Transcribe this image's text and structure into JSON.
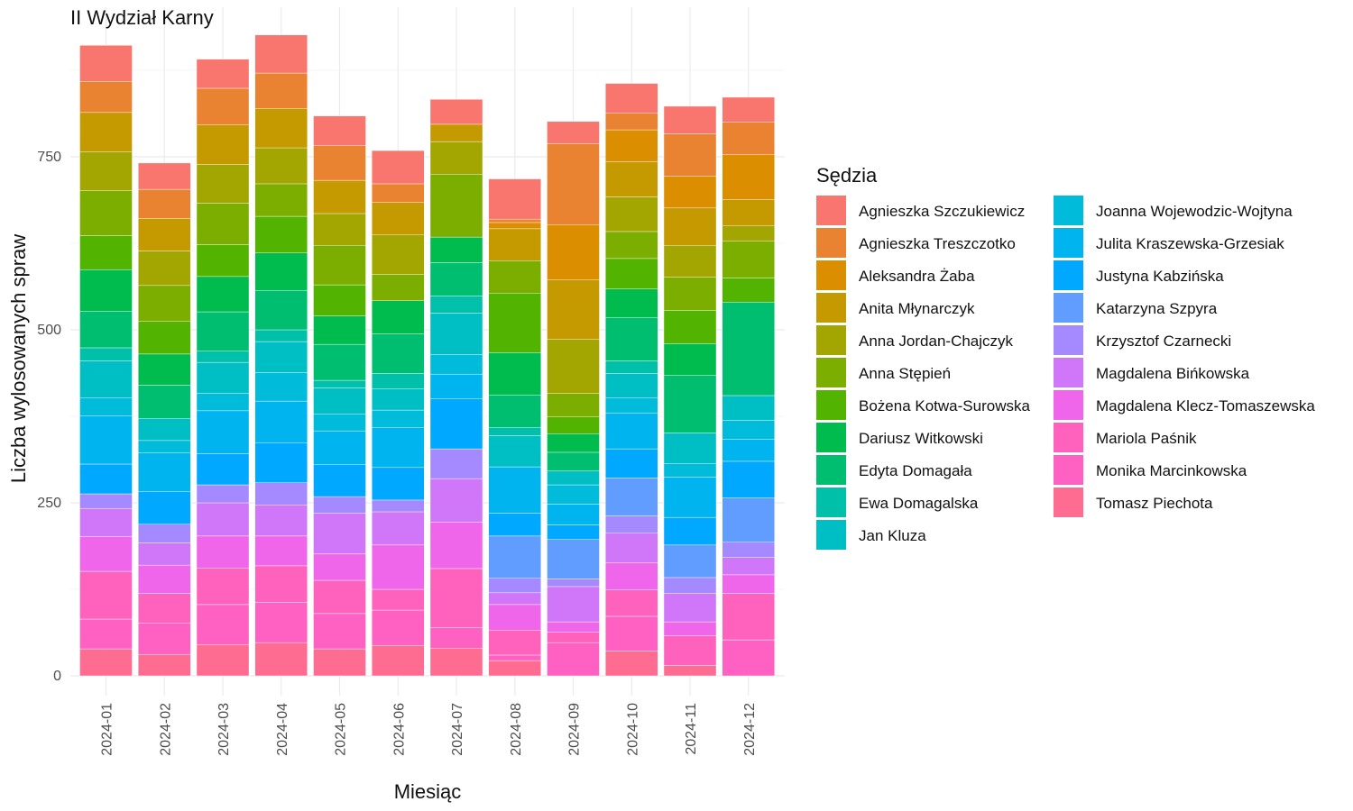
{
  "chart_data": {
    "type": "bar",
    "stacked": true,
    "title": "II Wydział Karny",
    "xlabel": "Miesiąc",
    "ylabel": "Liczba wylosowanych spraw",
    "ylim": [
      0,
      925
    ],
    "yticks": [
      0,
      250,
      500,
      750
    ],
    "grid": true,
    "legend_title": "Sędzia",
    "legend_position": "right",
    "categories": [
      "2024-01",
      "2024-02",
      "2024-03",
      "2024-04",
      "2024-05",
      "2024-06",
      "2024-07",
      "2024-08",
      "2024-09",
      "2024-10",
      "2024-11",
      "2024-12"
    ],
    "series": [
      {
        "name": "Tomasz Piechota",
        "color": "#FF6C91",
        "values": [
          39,
          31,
          45,
          48,
          39,
          44,
          40,
          22,
          0,
          36,
          15,
          0
        ]
      },
      {
        "name": "Monika Marcinkowska",
        "color": "#FF61C3",
        "values": [
          43,
          45,
          58,
          58,
          51,
          51,
          30,
          8,
          48,
          50,
          0,
          52
        ]
      },
      {
        "name": "Mariola Paśnik",
        "color": "#FF62BC",
        "values": [
          69,
          43,
          53,
          53,
          48,
          30,
          85,
          36,
          15,
          38,
          43,
          67
        ]
      },
      {
        "name": "Magdalena Klecz-Tomaszewska",
        "color": "#F066EA",
        "values": [
          50,
          41,
          46,
          43,
          38,
          64,
          67,
          37,
          15,
          39,
          20,
          27
        ]
      },
      {
        "name": "Magdalena Bińkowska",
        "color": "#CF77F8",
        "values": [
          41,
          32,
          48,
          45,
          59,
          48,
          63,
          17,
          51,
          43,
          41,
          25
        ]
      },
      {
        "name": "Krzysztof Czarnecki",
        "color": "#A58AFF",
        "values": [
          21,
          27,
          26,
          32,
          24,
          17,
          43,
          21,
          11,
          25,
          23,
          22
        ]
      },
      {
        "name": "Katarzyna Szpyra",
        "color": "#619CFF",
        "values": [
          0,
          0,
          0,
          0,
          0,
          0,
          0,
          61,
          57,
          55,
          47,
          64
        ]
      },
      {
        "name": "Justyna Kabzińska",
        "color": "#00A9FF",
        "values": [
          43,
          47,
          45,
          58,
          46,
          47,
          72,
          33,
          21,
          42,
          40,
          53
        ]
      },
      {
        "name": "Julita Kraszewska-Grzesiak",
        "color": "#00B4EF",
        "values": [
          70,
          56,
          62,
          60,
          49,
          58,
          36,
          67,
          30,
          52,
          58,
          32
        ]
      },
      {
        "name": "Joanna Wojewodzic-Wojtyna",
        "color": "#00BBDA",
        "values": [
          26,
          18,
          25,
          41,
          24,
          25,
          28,
          0,
          28,
          22,
          20,
          27
        ]
      },
      {
        "name": "Jan Kluza",
        "color": "#00BFC4",
        "values": [
          53,
          32,
          45,
          45,
          38,
          31,
          60,
          45,
          20,
          35,
          44,
          36
        ]
      },
      {
        "name": "Ewa Domagalska",
        "color": "#00C0AA",
        "values": [
          19,
          0,
          16,
          17,
          11,
          22,
          25,
          12,
          0,
          18,
          0,
          0
        ]
      },
      {
        "name": "Edyta Domagała",
        "color": "#00BE70",
        "values": [
          53,
          48,
          57,
          57,
          52,
          57,
          48,
          47,
          27,
          63,
          83,
          135
        ]
      },
      {
        "name": "Dariusz Witkowski",
        "color": "#00BB4E",
        "values": [
          60,
          45,
          51,
          54,
          41,
          48,
          37,
          61,
          27,
          41,
          46,
          0
        ]
      },
      {
        "name": "Bożena Kotwa-Surowska",
        "color": "#53B400",
        "values": [
          49,
          47,
          46,
          53,
          45,
          0,
          0,
          86,
          24,
          44,
          48,
          35
        ]
      },
      {
        "name": "Anna Stępień",
        "color": "#7CAE00",
        "values": [
          65,
          52,
          60,
          47,
          57,
          38,
          91,
          47,
          34,
          39,
          48,
          53
        ]
      },
      {
        "name": "Anna Jordan-Chajczyk",
        "color": "#A3A500",
        "values": [
          56,
          50,
          56,
          52,
          46,
          57,
          47,
          0,
          78,
          50,
          46,
          22
        ]
      },
      {
        "name": "Anita Młynarczyk",
        "color": "#C49A00",
        "values": [
          57,
          47,
          57,
          57,
          48,
          47,
          25,
          46,
          86,
          51,
          54,
          38
        ]
      },
      {
        "name": "Aleksandra Żaba",
        "color": "#DB8E00",
        "values": [
          0,
          0,
          0,
          0,
          0,
          0,
          0,
          9,
          80,
          46,
          46,
          65
        ]
      },
      {
        "name": "Agnieszka Treszczotko",
        "color": "#EA8331",
        "values": [
          45,
          42,
          53,
          51,
          50,
          27,
          0,
          5,
          117,
          24,
          61,
          47
        ]
      },
      {
        "name": "Agnieszka Szczukiewicz",
        "color": "#F8766D",
        "values": [
          52,
          38,
          42,
          55,
          43,
          48,
          36,
          58,
          32,
          43,
          40,
          36
        ]
      }
    ]
  },
  "legend": {
    "title": "Sędzia",
    "col1": [
      "Agnieszka Szczukiewicz",
      "Agnieszka Treszczotko",
      "Aleksandra Żaba",
      "Anita Młynarczyk",
      "Anna Jordan-Chajczyk",
      "Anna Stępień",
      "Bożena Kotwa-Surowska",
      "Dariusz Witkowski",
      "Edyta Domagała",
      "Ewa Domagalska",
      "Jan Kluza"
    ],
    "col2": [
      "Joanna Wojewodzic-Wojtyna",
      "Julita Kraszewska-Grzesiak",
      "Justyna Kabzińska",
      "Katarzyna Szpyra",
      "Krzysztof Czarnecki",
      "Magdalena Bińkowska",
      "Magdalena Klecz-Tomaszewska",
      "Mariola Paśnik",
      "Monika Marcinkowska",
      "Tomasz Piechota"
    ]
  }
}
